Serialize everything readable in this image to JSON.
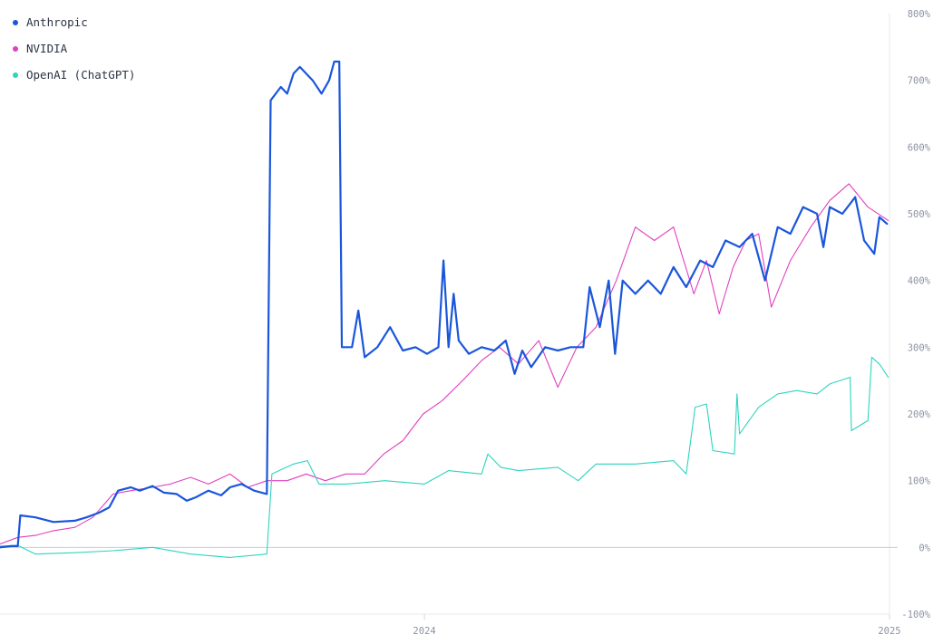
{
  "chart_data": {
    "type": "line",
    "title": "",
    "xlabel": "",
    "ylabel": "",
    "y_unit": "%",
    "ylim": [
      -100,
      800
    ],
    "y_ticks": [
      800,
      700,
      600,
      500,
      400,
      300,
      200,
      100,
      0,
      -100
    ],
    "y_tick_labels": [
      "800%",
      "700%",
      "600%",
      "500%",
      "400%",
      "300%",
      "200%",
      "100%",
      "0%",
      "-100%"
    ],
    "xlim": [
      "2023-02-01",
      "2025-01-01"
    ],
    "x_ticks": [
      "2024-01-01",
      "2025-01-01"
    ],
    "x_tick_labels": [
      "2024",
      "2025"
    ],
    "grid": "horizontal zero line",
    "legend_position": "top-left",
    "series": [
      {
        "name": "Anthropic",
        "color": "#1a56db",
        "stroke_width": 2.2,
        "points": [
          [
            "2023-02-01",
            0
          ],
          [
            "2023-02-10",
            2
          ],
          [
            "2023-02-15",
            2
          ],
          [
            "2023-02-17",
            48
          ],
          [
            "2023-03-01",
            45
          ],
          [
            "2023-03-15",
            38
          ],
          [
            "2023-04-01",
            40
          ],
          [
            "2023-04-10",
            45
          ],
          [
            "2023-04-20",
            52
          ],
          [
            "2023-04-28",
            60
          ],
          [
            "2023-05-05",
            85
          ],
          [
            "2023-05-15",
            90
          ],
          [
            "2023-05-22",
            85
          ],
          [
            "2023-06-01",
            92
          ],
          [
            "2023-06-10",
            82
          ],
          [
            "2023-06-20",
            80
          ],
          [
            "2023-06-28",
            70
          ],
          [
            "2023-07-05",
            75
          ],
          [
            "2023-07-15",
            85
          ],
          [
            "2023-07-25",
            78
          ],
          [
            "2023-08-01",
            90
          ],
          [
            "2023-08-10",
            95
          ],
          [
            "2023-08-20",
            85
          ],
          [
            "2023-08-30",
            80
          ],
          [
            "2023-09-02",
            670
          ],
          [
            "2023-09-10",
            690
          ],
          [
            "2023-09-15",
            680
          ],
          [
            "2023-09-20",
            710
          ],
          [
            "2023-09-25",
            720
          ],
          [
            "2023-10-05",
            700
          ],
          [
            "2023-10-12",
            680
          ],
          [
            "2023-10-18",
            700
          ],
          [
            "2023-10-22",
            728
          ],
          [
            "2023-10-26",
            728
          ],
          [
            "2023-10-28",
            300
          ],
          [
            "2023-11-05",
            300
          ],
          [
            "2023-11-10",
            355
          ],
          [
            "2023-11-15",
            285
          ],
          [
            "2023-11-25",
            300
          ],
          [
            "2023-12-05",
            330
          ],
          [
            "2023-12-15",
            295
          ],
          [
            "2023-12-25",
            300
          ],
          [
            "2024-01-03",
            290
          ],
          [
            "2024-01-12",
            300
          ],
          [
            "2024-01-16",
            430
          ],
          [
            "2024-01-20",
            300
          ],
          [
            "2024-01-24",
            380
          ],
          [
            "2024-01-28",
            310
          ],
          [
            "2024-02-05",
            290
          ],
          [
            "2024-02-15",
            300
          ],
          [
            "2024-02-25",
            295
          ],
          [
            "2024-03-05",
            310
          ],
          [
            "2024-03-12",
            260
          ],
          [
            "2024-03-18",
            295
          ],
          [
            "2024-03-25",
            270
          ],
          [
            "2024-04-05",
            300
          ],
          [
            "2024-04-15",
            295
          ],
          [
            "2024-04-25",
            300
          ],
          [
            "2024-05-05",
            300
          ],
          [
            "2024-05-10",
            390
          ],
          [
            "2024-05-18",
            330
          ],
          [
            "2024-05-25",
            400
          ],
          [
            "2024-05-30",
            290
          ],
          [
            "2024-06-05",
            400
          ],
          [
            "2024-06-15",
            380
          ],
          [
            "2024-06-25",
            400
          ],
          [
            "2024-07-05",
            380
          ],
          [
            "2024-07-15",
            420
          ],
          [
            "2024-07-25",
            390
          ],
          [
            "2024-08-05",
            430
          ],
          [
            "2024-08-15",
            420
          ],
          [
            "2024-08-25",
            460
          ],
          [
            "2024-09-05",
            450
          ],
          [
            "2024-09-15",
            470
          ],
          [
            "2024-09-25",
            400
          ],
          [
            "2024-10-05",
            480
          ],
          [
            "2024-10-15",
            470
          ],
          [
            "2024-10-25",
            510
          ],
          [
            "2024-11-05",
            500
          ],
          [
            "2024-11-10",
            450
          ],
          [
            "2024-11-15",
            510
          ],
          [
            "2024-11-25",
            500
          ],
          [
            "2024-12-05",
            525
          ],
          [
            "2024-12-12",
            460
          ],
          [
            "2024-12-20",
            440
          ],
          [
            "2024-12-24",
            495
          ],
          [
            "2024-12-30",
            485
          ]
        ]
      },
      {
        "name": "NVIDIA",
        "color": "#e040c0",
        "stroke_width": 1.1,
        "points": [
          [
            "2023-02-01",
            5
          ],
          [
            "2023-02-15",
            15
          ],
          [
            "2023-03-01",
            18
          ],
          [
            "2023-03-15",
            25
          ],
          [
            "2023-04-01",
            30
          ],
          [
            "2023-04-15",
            45
          ],
          [
            "2023-05-01",
            80
          ],
          [
            "2023-05-15",
            85
          ],
          [
            "2023-06-01",
            90
          ],
          [
            "2023-06-15",
            95
          ],
          [
            "2023-07-01",
            105
          ],
          [
            "2023-07-15",
            95
          ],
          [
            "2023-08-01",
            110
          ],
          [
            "2023-08-15",
            90
          ],
          [
            "2023-08-30",
            100
          ],
          [
            "2023-09-15",
            100
          ],
          [
            "2023-09-30",
            110
          ],
          [
            "2023-10-15",
            100
          ],
          [
            "2023-10-31",
            110
          ],
          [
            "2023-11-15",
            110
          ],
          [
            "2023-11-30",
            140
          ],
          [
            "2023-12-15",
            160
          ],
          [
            "2023-12-31",
            200
          ],
          [
            "2024-01-15",
            220
          ],
          [
            "2024-01-31",
            250
          ],
          [
            "2024-02-15",
            280
          ],
          [
            "2024-02-29",
            300
          ],
          [
            "2024-03-15",
            275
          ],
          [
            "2024-03-31",
            310
          ],
          [
            "2024-04-15",
            240
          ],
          [
            "2024-04-30",
            300
          ],
          [
            "2024-05-15",
            330
          ],
          [
            "2024-05-31",
            400
          ],
          [
            "2024-06-15",
            480
          ],
          [
            "2024-06-30",
            460
          ],
          [
            "2024-07-15",
            480
          ],
          [
            "2024-07-31",
            380
          ],
          [
            "2024-08-10",
            430
          ],
          [
            "2024-08-20",
            350
          ],
          [
            "2024-08-31",
            420
          ],
          [
            "2024-09-10",
            460
          ],
          [
            "2024-09-20",
            470
          ],
          [
            "2024-09-30",
            360
          ],
          [
            "2024-10-15",
            430
          ],
          [
            "2024-10-31",
            480
          ],
          [
            "2024-11-15",
            520
          ],
          [
            "2024-11-30",
            545
          ],
          [
            "2024-12-15",
            510
          ],
          [
            "2024-12-31",
            490
          ]
        ]
      },
      {
        "name": "OpenAI (ChatGPT)",
        "color": "#2dd4bf",
        "stroke_width": 1.1,
        "points": [
          [
            "2023-02-01",
            2
          ],
          [
            "2023-02-15",
            3
          ],
          [
            "2023-03-01",
            -10
          ],
          [
            "2023-04-01",
            -8
          ],
          [
            "2023-05-01",
            -5
          ],
          [
            "2023-06-01",
            0
          ],
          [
            "2023-07-01",
            -10
          ],
          [
            "2023-08-01",
            -15
          ],
          [
            "2023-08-30",
            -10
          ],
          [
            "2023-09-03",
            110
          ],
          [
            "2023-09-20",
            125
          ],
          [
            "2023-10-01",
            130
          ],
          [
            "2023-10-10",
            95
          ],
          [
            "2023-11-01",
            95
          ],
          [
            "2023-12-01",
            100
          ],
          [
            "2024-01-01",
            95
          ],
          [
            "2024-01-20",
            115
          ],
          [
            "2024-02-15",
            110
          ],
          [
            "2024-02-20",
            140
          ],
          [
            "2024-03-01",
            120
          ],
          [
            "2024-03-15",
            115
          ],
          [
            "2024-04-15",
            120
          ],
          [
            "2024-05-01",
            100
          ],
          [
            "2024-05-15",
            125
          ],
          [
            "2024-06-15",
            125
          ],
          [
            "2024-07-15",
            130
          ],
          [
            "2024-07-25",
            110
          ],
          [
            "2024-08-01",
            210
          ],
          [
            "2024-08-10",
            215
          ],
          [
            "2024-08-15",
            145
          ],
          [
            "2024-09-01",
            140
          ],
          [
            "2024-09-03",
            230
          ],
          [
            "2024-09-05",
            170
          ],
          [
            "2024-09-20",
            210
          ],
          [
            "2024-10-05",
            230
          ],
          [
            "2024-10-20",
            235
          ],
          [
            "2024-11-05",
            230
          ],
          [
            "2024-11-15",
            245
          ],
          [
            "2024-12-01",
            255
          ],
          [
            "2024-12-02",
            175
          ],
          [
            "2024-12-15",
            190
          ],
          [
            "2024-12-18",
            285
          ],
          [
            "2024-12-24",
            275
          ],
          [
            "2024-12-31",
            255
          ]
        ]
      }
    ]
  }
}
